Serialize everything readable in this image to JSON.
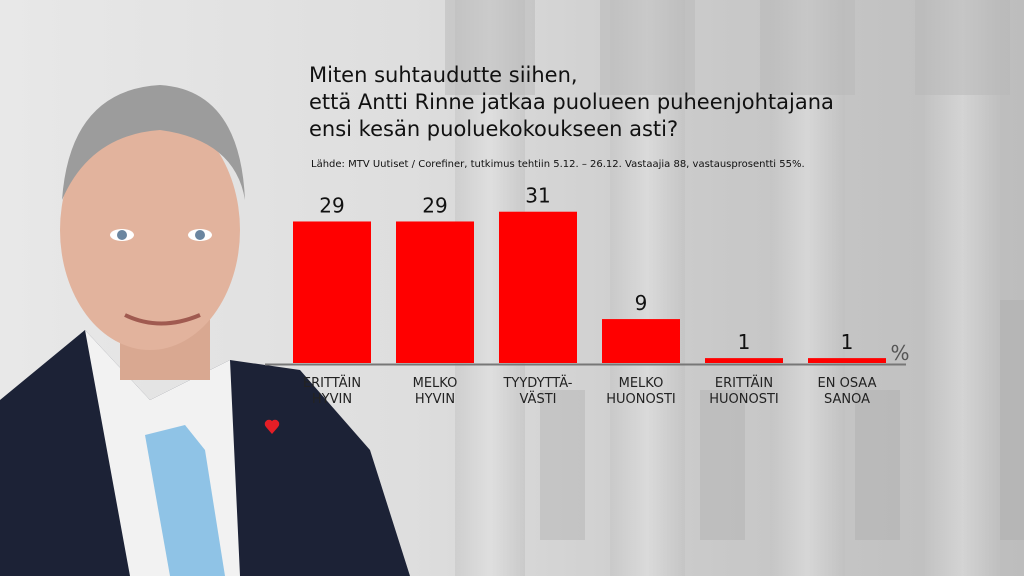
{
  "title_lines": [
    "Miten suhtaudutte siihen,",
    "että Antti Rinne jatkaa puolueen puheenjohtajana",
    "ensi kesän puoluekokoukseen asti?"
  ],
  "source": "Lähde: MTV Uutiset / Corefiner, tutkimus tehtiin 5.12. – 26.12. Vastaajia 88, vastausprosentti 55%.",
  "chart_data": {
    "type": "bar",
    "title": "Miten suhtaudutte siihen, että Antti Rinne jatkaa puolueen puheenjohtajana ensi kesän puoluekokoukseen asti?",
    "categories": [
      [
        "ERITTÄIN",
        "HYVIN"
      ],
      [
        "MELKO",
        "HYVIN"
      ],
      [
        "TYYDYTTÄ-",
        "VÄSTI"
      ],
      [
        "MELKO",
        "HUONOSTI"
      ],
      [
        "ERITTÄIN",
        "HUONOSTI"
      ],
      [
        "EN OSAA",
        "SANOA"
      ]
    ],
    "values": [
      29,
      29,
      31,
      9,
      1,
      1
    ],
    "unit": "%",
    "ylim": [
      0,
      31
    ],
    "bar_color": "#ff0000",
    "grid": false,
    "legend": "none"
  }
}
